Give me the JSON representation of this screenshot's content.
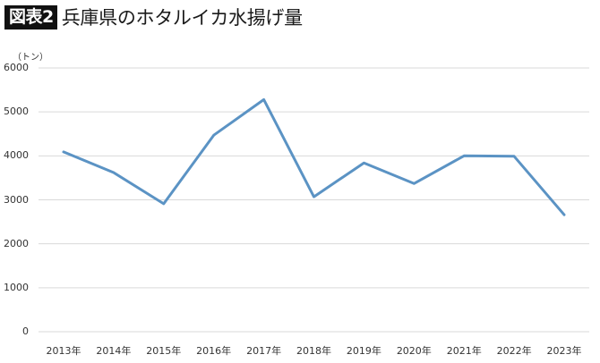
{
  "header": {
    "badge": "図表2",
    "title": "兵庫県のホタルイカ水揚げ量"
  },
  "unit_label": "（トン）",
  "colors": {
    "line": "#5b93c4",
    "grid": "#d9d9d9",
    "badge_bg": "#111111"
  },
  "chart_data": {
    "type": "line",
    "title": "兵庫県のホタルイカ水揚げ量",
    "xlabel": "",
    "ylabel": "（トン）",
    "ylim": [
      0,
      6000
    ],
    "yticks": [
      0,
      1000,
      2000,
      3000,
      4000,
      5000,
      6000
    ],
    "grid": true,
    "legend": "none",
    "categories": [
      "2013年",
      "2014年",
      "2015年",
      "2016年",
      "2017年",
      "2018年",
      "2019年",
      "2020年",
      "2021年",
      "2022年",
      "2023年"
    ],
    "series": [
      {
        "name": "水揚げ量",
        "values": [
          4090,
          3620,
          2910,
          4470,
          5280,
          3070,
          3840,
          3370,
          4000,
          3990,
          2660
        ]
      }
    ]
  }
}
